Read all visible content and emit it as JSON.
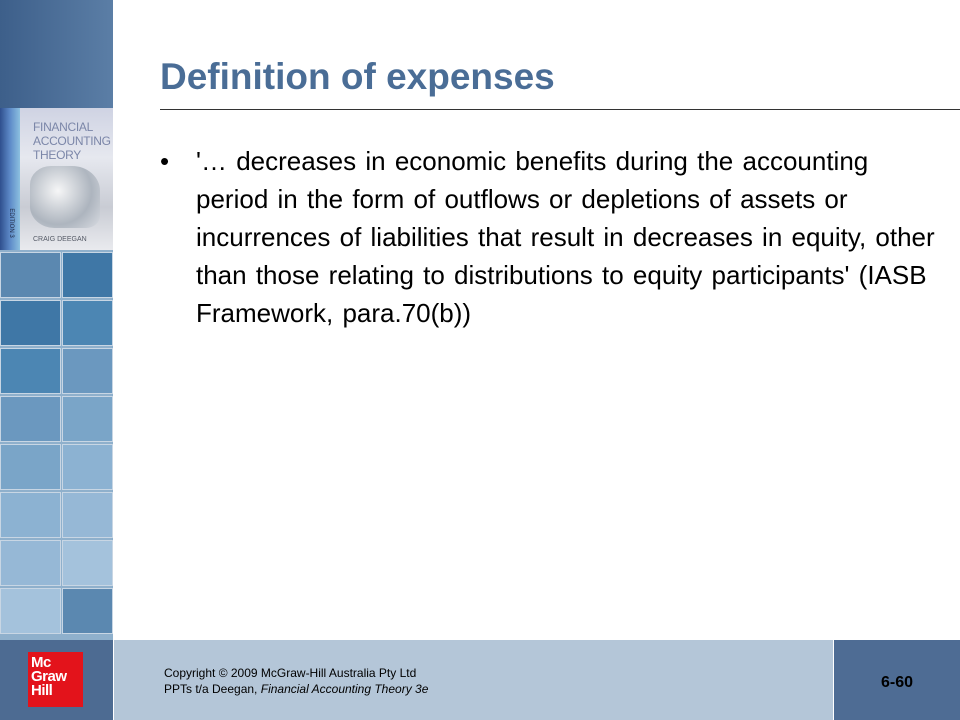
{
  "slide": {
    "title": "Definition of expenses",
    "bullets": [
      "'… decreases in economic benefits during the accounting period in the form of outflows or depletions of assets or incurrences of liabilities that result in decreases in equity, other than those relating to distributions to equity participants' (IASB Framework, para.70(b))"
    ],
    "bullet_char": "•"
  },
  "cover": {
    "title": "FINANCIAL ACCOUNTING THEORY",
    "author": "CRAIG DEEGAN",
    "edition": "EDITION 3"
  },
  "footer": {
    "logo_text": "Mc Graw Hill",
    "copyright_line": "Copyright © 2009 McGraw-Hill Australia Pty Ltd",
    "ppt_prefix": "PPTs t/a Deegan, ",
    "book_title": "Financial Accounting Theory 3e",
    "slide_number": "6-60"
  },
  "colors": {
    "title": "#4a6d96",
    "footer_dark": "#4e6c94",
    "footer_light": "#b4c6d8",
    "logo_red": "#e3131b"
  }
}
